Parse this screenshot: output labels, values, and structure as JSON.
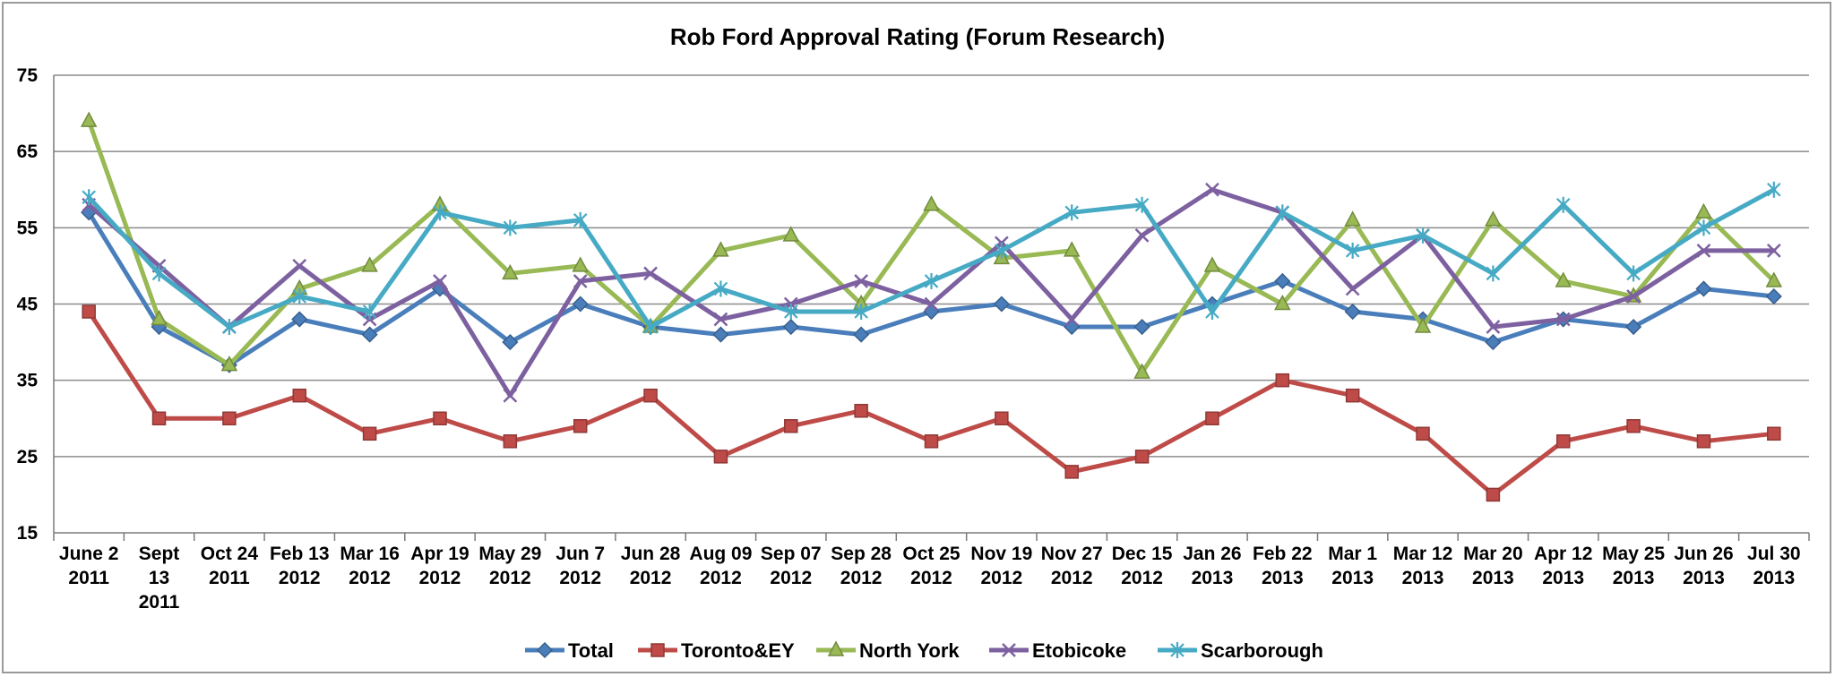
{
  "chart_data": {
    "type": "line",
    "title": "Rob Ford Approval Rating (Forum Research)",
    "xlabel": "",
    "ylabel": "",
    "ylim": [
      15,
      75
    ],
    "yticks": [
      15,
      25,
      35,
      45,
      55,
      65,
      75
    ],
    "grid": true,
    "legend": "bottom",
    "categories": [
      [
        "June 2",
        "2011"
      ],
      [
        "Sept",
        "13",
        "2011"
      ],
      [
        "Oct 24",
        "2011"
      ],
      [
        "Feb 13",
        "2012"
      ],
      [
        "Mar 16",
        "2012"
      ],
      [
        "Apr 19",
        "2012"
      ],
      [
        "May 29",
        "2012"
      ],
      [
        "Jun 7",
        "2012"
      ],
      [
        "Jun 28",
        "2012"
      ],
      [
        "Aug 09",
        "2012"
      ],
      [
        "Sep 07",
        "2012"
      ],
      [
        "Sep 28",
        "2012"
      ],
      [
        "Oct 25",
        "2012"
      ],
      [
        "Nov 19",
        "2012"
      ],
      [
        "Nov 27",
        "2012"
      ],
      [
        "Dec 15",
        "2012"
      ],
      [
        "Jan 26",
        "2013"
      ],
      [
        "Feb 22",
        "2013"
      ],
      [
        "Mar 1",
        "2013"
      ],
      [
        "Mar 12",
        "2013"
      ],
      [
        "Mar 20",
        "2013"
      ],
      [
        "Apr 12",
        "2013"
      ],
      [
        "May 25",
        "2013"
      ],
      [
        "Jun 26",
        "2013"
      ],
      [
        "Jul 30",
        "2013"
      ]
    ],
    "series": [
      {
        "name": "Total",
        "color": "#4a7ebb",
        "marker": "diamond",
        "values": [
          57,
          42,
          37,
          43,
          41,
          47,
          40,
          45,
          42,
          41,
          42,
          41,
          44,
          45,
          42,
          42,
          45,
          48,
          44,
          43,
          40,
          43,
          42,
          47,
          46
        ]
      },
      {
        "name": "Toronto&EY",
        "color": "#be4b48",
        "marker": "square",
        "values": [
          44,
          30,
          30,
          33,
          28,
          30,
          27,
          29,
          33,
          25,
          29,
          31,
          27,
          30,
          23,
          25,
          30,
          35,
          33,
          28,
          20,
          27,
          29,
          27,
          28
        ]
      },
      {
        "name": "North York",
        "color": "#98b954",
        "marker": "triangle",
        "values": [
          69,
          43,
          37,
          47,
          50,
          58,
          49,
          50,
          42,
          52,
          54,
          45,
          58,
          51,
          52,
          36,
          50,
          45,
          56,
          42,
          56,
          48,
          46,
          57,
          48
        ]
      },
      {
        "name": "Etobicoke",
        "color": "#7d60a0",
        "marker": "x",
        "values": [
          58,
          50,
          42,
          50,
          43,
          48,
          33,
          48,
          49,
          43,
          45,
          48,
          45,
          53,
          43,
          54,
          60,
          57,
          47,
          54,
          42,
          43,
          46,
          52,
          52
        ]
      },
      {
        "name": "Scarborough",
        "color": "#46aac5",
        "marker": "star",
        "values": [
          59,
          49,
          42,
          46,
          44,
          57,
          55,
          56,
          42,
          47,
          44,
          44,
          48,
          52,
          57,
          58,
          44,
          57,
          52,
          54,
          49,
          58,
          49,
          55,
          60
        ]
      }
    ]
  }
}
